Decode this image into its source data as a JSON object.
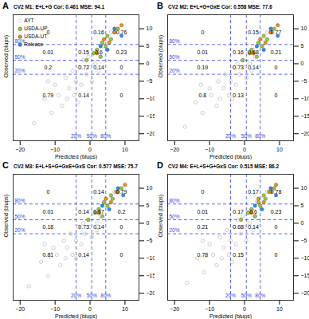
{
  "chart_data": [
    {
      "type": "scatter",
      "panel": "A",
      "title": "CV2   M1: E+L+G   Cor: 0.461   MSE: 94.1",
      "x_label": "Predicted (blups)",
      "y_label": "Observed (blups)",
      "xlim": [
        -22,
        14
      ],
      "ylim": [
        -22,
        14
      ],
      "xticks": [
        -20,
        -10,
        0,
        10
      ],
      "yticks": [
        -20,
        -15,
        -10,
        -5,
        0,
        5,
        10
      ],
      "legend": "top-left",
      "vlines": [
        {
          "value": -4,
          "label": "20%"
        },
        {
          "value": 0.5,
          "label": "50%"
        },
        {
          "value": 4.5,
          "label": "80%"
        }
      ],
      "hlines": [
        {
          "value": -3,
          "label": "20%"
        },
        {
          "value": 1,
          "label": "50%"
        },
        {
          "value": 5.5,
          "label": "80%"
        }
      ],
      "annotations": [
        {
          "x": -12,
          "y": 9,
          "text": "0"
        },
        {
          "x": 2.5,
          "y": 9,
          "text": "0.16"
        },
        {
          "x": 9,
          "y": 9,
          "text": "0.76"
        },
        {
          "x": -12,
          "y": 3.2,
          "text": "0.01"
        },
        {
          "x": -1.8,
          "y": 3.2,
          "text": "0.15"
        },
        {
          "x": 2.5,
          "y": 3.2,
          "text": "0.6"
        },
        {
          "x": 9,
          "y": 3.2,
          "text": "0.23"
        },
        {
          "x": -12,
          "y": -1,
          "text": "0.2"
        },
        {
          "x": -1.8,
          "y": -1,
          "text": "0.72"
        },
        {
          "x": 2.5,
          "y": -1,
          "text": "0.14"
        },
        {
          "x": 9,
          "y": -1,
          "text": "0"
        },
        {
          "x": -12,
          "y": -9,
          "text": "0.79"
        },
        {
          "x": -1.8,
          "y": -9,
          "text": "0.14"
        },
        {
          "x": 9,
          "y": -9,
          "text": "0"
        }
      ],
      "series": [
        {
          "name": "AYT",
          "color": "#c8c8c8",
          "marker": "circle-open",
          "x": [
            -16,
            -13,
            -11,
            -10,
            -9,
            -8,
            -7,
            -6,
            -5,
            -4.5,
            -4,
            -3,
            -2.5,
            -2,
            -1,
            -0.5,
            0,
            1,
            1.5,
            2,
            3,
            3.5,
            4,
            5,
            6,
            -12,
            -6.5,
            -3.5,
            0.5,
            2.5
          ],
          "y": [
            -17,
            -10,
            -14,
            -6,
            -9,
            -12,
            -4,
            -7,
            -2,
            -9,
            -5,
            -1,
            -6,
            1,
            -3,
            2,
            -1,
            3,
            0,
            4,
            2,
            6,
            5,
            7,
            9,
            -5,
            -10,
            -11,
            -5,
            -2
          ]
        },
        {
          "name": "USDA-UP",
          "color": "#9acd32",
          "marker": "circle",
          "x": [
            -1,
            1,
            2,
            3,
            3.5,
            4.5,
            5,
            6,
            7,
            8
          ],
          "y": [
            1,
            3,
            4,
            2,
            6,
            5,
            8,
            7,
            9,
            10
          ]
        },
        {
          "name": "USDA-UT",
          "color": "#ff8c00",
          "marker": "circle",
          "x": [
            2,
            4,
            5.5,
            7,
            9
          ],
          "y": [
            3,
            7,
            6,
            9,
            11
          ]
        },
        {
          "name": "Release",
          "color": "#1e90ff",
          "marker": "circle",
          "x": [
            3,
            5,
            7,
            9
          ],
          "y": [
            5,
            4,
            10,
            8
          ]
        }
      ]
    },
    {
      "type": "scatter",
      "panel": "B",
      "title": "CV2   M2: E+L+G+GxE   Cor: 0.558   MSE: 77.6",
      "x_label": "Predicted (blups)",
      "y_label": "Observed (blups)",
      "xlim": [
        -22,
        14
      ],
      "ylim": [
        -22,
        14
      ],
      "xticks": [
        -20,
        -10,
        0,
        10
      ],
      "yticks": [
        -20,
        -15,
        -10,
        -5,
        0,
        5,
        10
      ],
      "vlines": [
        {
          "value": -4,
          "label": "20%"
        },
        {
          "value": 0.5,
          "label": "50%"
        },
        {
          "value": 4.5,
          "label": "80%"
        }
      ],
      "hlines": [
        {
          "value": -3,
          "label": "20%"
        },
        {
          "value": 1,
          "label": "50%"
        },
        {
          "value": 5.5,
          "label": "80%"
        }
      ],
      "annotations": [
        {
          "x": -12,
          "y": 9,
          "text": "0"
        },
        {
          "x": 2.5,
          "y": 9,
          "text": "0.15"
        },
        {
          "x": 9,
          "y": 9,
          "text": "0.77"
        },
        {
          "x": -12,
          "y": 3.2,
          "text": "0.01"
        },
        {
          "x": -1.8,
          "y": 3.2,
          "text": "0.16"
        },
        {
          "x": 2.5,
          "y": 3.2,
          "text": "0.68"
        },
        {
          "x": 9,
          "y": 3.2,
          "text": "0.21"
        },
        {
          "x": -12,
          "y": -1,
          "text": "0.19"
        },
        {
          "x": -1.8,
          "y": -1,
          "text": "0.73"
        },
        {
          "x": 2.5,
          "y": -1,
          "text": "0.14"
        },
        {
          "x": 9,
          "y": -1,
          "text": "0"
        },
        {
          "x": -12,
          "y": -9,
          "text": "0.8"
        },
        {
          "x": -1.8,
          "y": -9,
          "text": "0.13"
        },
        {
          "x": 9,
          "y": -9,
          "text": "0"
        }
      ],
      "series": [
        {
          "name": "AYT",
          "color": "#c8c8c8",
          "marker": "circle-open",
          "x": [
            -17,
            -14,
            -12,
            -10,
            -9.5,
            -8,
            -7.5,
            -6,
            -5.5,
            -4.5,
            -4,
            -3,
            -2.5,
            -2,
            -1.5,
            -0.5,
            0,
            1,
            1.5,
            2.5,
            3,
            4,
            4.5,
            5.5,
            6.5,
            -12.5,
            -7,
            -3.5,
            0.5,
            2
          ],
          "y": [
            -18,
            -11,
            -14,
            -7,
            -9,
            -12,
            -5,
            -7,
            -3,
            -9,
            -5,
            -1,
            -6,
            0,
            -3,
            1,
            -1,
            3,
            0,
            4,
            2,
            6,
            5,
            7,
            9,
            -6,
            -10,
            -10,
            -4,
            -2
          ]
        },
        {
          "name": "USDA-UP",
          "color": "#9acd32",
          "marker": "circle",
          "x": [
            -0.5,
            1.5,
            2,
            3.5,
            4,
            5,
            5.5,
            6.5,
            7.5,
            8.5
          ],
          "y": [
            1,
            3,
            4,
            2,
            6,
            5,
            8,
            7,
            9,
            10
          ]
        },
        {
          "name": "USDA-UT",
          "color": "#ff8c00",
          "marker": "circle",
          "x": [
            2.5,
            4.5,
            6,
            7.5,
            9.5
          ],
          "y": [
            3,
            7,
            6,
            9,
            11
          ]
        },
        {
          "name": "Release",
          "color": "#1e90ff",
          "marker": "circle",
          "x": [
            3.5,
            5.5,
            7.5,
            9.5
          ],
          "y": [
            5,
            4,
            10,
            8
          ]
        }
      ]
    },
    {
      "type": "scatter",
      "panel": "C",
      "title": "CV2   M3: E+L+S+G+GxE+GxS   Cor: 0.577   MSE: 75.7",
      "x_label": "Predicted (blups)",
      "y_label": "Observed (blups)",
      "xlim": [
        -22,
        14
      ],
      "ylim": [
        -22,
        14
      ],
      "xticks": [
        -20,
        -10,
        0,
        10
      ],
      "yticks": [
        -20,
        -15,
        -10,
        -5,
        0,
        5,
        10
      ],
      "vlines": [
        {
          "value": -4,
          "label": "20%"
        },
        {
          "value": 0.5,
          "label": "50%"
        },
        {
          "value": 4.5,
          "label": "80%"
        }
      ],
      "hlines": [
        {
          "value": -3,
          "label": "20%"
        },
        {
          "value": 1,
          "label": "50%"
        },
        {
          "value": 5.5,
          "label": "80%"
        }
      ],
      "annotations": [
        {
          "x": -12,
          "y": 9,
          "text": "0"
        },
        {
          "x": 2.5,
          "y": 9,
          "text": "0.14"
        },
        {
          "x": 9,
          "y": 9,
          "text": "0.79"
        },
        {
          "x": -12,
          "y": 3.2,
          "text": "0.01"
        },
        {
          "x": -1.8,
          "y": 3.2,
          "text": "0.14"
        },
        {
          "x": 2.5,
          "y": 3.2,
          "text": "0.67"
        },
        {
          "x": 9,
          "y": 3.2,
          "text": "0.2"
        },
        {
          "x": -12,
          "y": -1,
          "text": "0.18"
        },
        {
          "x": -1.8,
          "y": -1,
          "text": "0.73"
        },
        {
          "x": 2.5,
          "y": -1,
          "text": "0.14"
        },
        {
          "x": 9,
          "y": -1,
          "text": "0"
        },
        {
          "x": -12,
          "y": -9,
          "text": "0.81"
        },
        {
          "x": -1.8,
          "y": -9,
          "text": "0.14"
        },
        {
          "x": 9,
          "y": -9,
          "text": "0"
        }
      ],
      "series": [
        {
          "name": "AYT",
          "color": "#c8c8c8",
          "marker": "circle-open",
          "x": [
            -17.5,
            -14,
            -12,
            -10.5,
            -9.5,
            -8.5,
            -7.5,
            -6.5,
            -5.5,
            -5,
            -4,
            -3.5,
            -2.5,
            -2,
            -1.5,
            -0.5,
            0,
            1,
            2,
            2.5,
            3,
            4,
            4.5,
            5.5,
            7,
            -13,
            -7,
            -4,
            0.5,
            2
          ],
          "y": [
            -18,
            -11,
            -15,
            -7,
            -9,
            -12,
            -5,
            -7,
            -3,
            -9,
            -5,
            -1,
            -6,
            0,
            -3,
            1,
            -1,
            3,
            0,
            4,
            2,
            6,
            5,
            7,
            9,
            -6,
            -10,
            -10,
            -4,
            -2
          ]
        },
        {
          "name": "USDA-UP",
          "color": "#9acd32",
          "marker": "circle",
          "x": [
            -0.5,
            1.5,
            2.5,
            3.5,
            4,
            5,
            6,
            6.5,
            7.5,
            9
          ],
          "y": [
            1,
            3,
            4,
            2,
            6,
            5,
            8,
            7,
            9,
            10
          ]
        },
        {
          "name": "USDA-UT",
          "color": "#ff8c00",
          "marker": "circle",
          "x": [
            2.5,
            4.5,
            6,
            8,
            10
          ],
          "y": [
            3,
            7,
            6,
            9,
            11
          ]
        },
        {
          "name": "Release",
          "color": "#1e90ff",
          "marker": "circle",
          "x": [
            3.5,
            5.5,
            8,
            9.5
          ],
          "y": [
            5,
            4,
            10,
            8
          ]
        }
      ]
    },
    {
      "type": "scatter",
      "panel": "D",
      "title": "CV2   M4: E+L+S+G+GxS   Cor: 0.515   MSE: 86.2",
      "x_label": "Predicted (blups)",
      "y_label": "Observed (blups)",
      "xlim": [
        -22,
        14
      ],
      "ylim": [
        -22,
        14
      ],
      "xticks": [
        -20,
        -10,
        0,
        10
      ],
      "yticks": [
        -20,
        -15,
        -10,
        -5,
        0,
        5,
        10
      ],
      "vlines": [
        {
          "value": -4,
          "label": "20%"
        },
        {
          "value": 0.5,
          "label": "50%"
        },
        {
          "value": 4.5,
          "label": "80%"
        }
      ],
      "hlines": [
        {
          "value": -3,
          "label": "20%"
        },
        {
          "value": 1,
          "label": "50%"
        },
        {
          "value": 5.5,
          "label": "80%"
        }
      ],
      "annotations": [
        {
          "x": -12,
          "y": 9,
          "text": "0"
        },
        {
          "x": 2.5,
          "y": 9,
          "text": "0.17"
        },
        {
          "x": 9,
          "y": 9,
          "text": "0.78"
        },
        {
          "x": -12,
          "y": 3.2,
          "text": "0.01"
        },
        {
          "x": -1.8,
          "y": 3.2,
          "text": "0.17"
        },
        {
          "x": 2.5,
          "y": 3.2,
          "text": "0.6"
        },
        {
          "x": 9,
          "y": 3.2,
          "text": "0.23"
        },
        {
          "x": -12,
          "y": -1,
          "text": "0.21"
        },
        {
          "x": -1.8,
          "y": -1,
          "text": "0.68"
        },
        {
          "x": 2.5,
          "y": -1,
          "text": "0.14"
        },
        {
          "x": 9,
          "y": -1,
          "text": "0"
        },
        {
          "x": -12,
          "y": -9,
          "text": "0.78"
        },
        {
          "x": -1.8,
          "y": -9,
          "text": "0.15"
        },
        {
          "x": 9,
          "y": -9,
          "text": "0"
        }
      ],
      "series": [
        {
          "name": "AYT",
          "color": "#c8c8c8",
          "marker": "circle-open",
          "x": [
            -16.5,
            -13.5,
            -11.5,
            -10,
            -9,
            -8,
            -7,
            -6,
            -5,
            -4.5,
            -4,
            -3,
            -2.5,
            -2,
            -1,
            -0.5,
            0,
            1,
            1.5,
            2,
            3,
            3.5,
            4.5,
            5,
            6.5,
            -12,
            -6.5,
            -3.5,
            0.5,
            2.5
          ],
          "y": [
            -17,
            -10,
            -14,
            -6,
            -9,
            -12,
            -4,
            -7,
            -2,
            -9,
            -5,
            -1,
            -6,
            1,
            -3,
            2,
            -1,
            3,
            0,
            4,
            2,
            6,
            5,
            7,
            9,
            -5,
            -10,
            -11,
            -5,
            -2
          ]
        },
        {
          "name": "USDA-UP",
          "color": "#9acd32",
          "marker": "circle",
          "x": [
            -1,
            1,
            2,
            3,
            4,
            4.5,
            5.5,
            6,
            7,
            8.5
          ],
          "y": [
            1,
            3,
            4,
            2,
            6,
            5,
            8,
            7,
            9,
            10
          ]
        },
        {
          "name": "USDA-UT",
          "color": "#ff8c00",
          "marker": "circle",
          "x": [
            2,
            4,
            5.5,
            7.5,
            9
          ],
          "y": [
            3,
            7,
            6,
            9,
            11
          ]
        },
        {
          "name": "Release",
          "color": "#1e90ff",
          "marker": "circle",
          "x": [
            3,
            5,
            7.5,
            9
          ],
          "y": [
            5,
            4,
            10,
            8
          ]
        }
      ]
    }
  ]
}
